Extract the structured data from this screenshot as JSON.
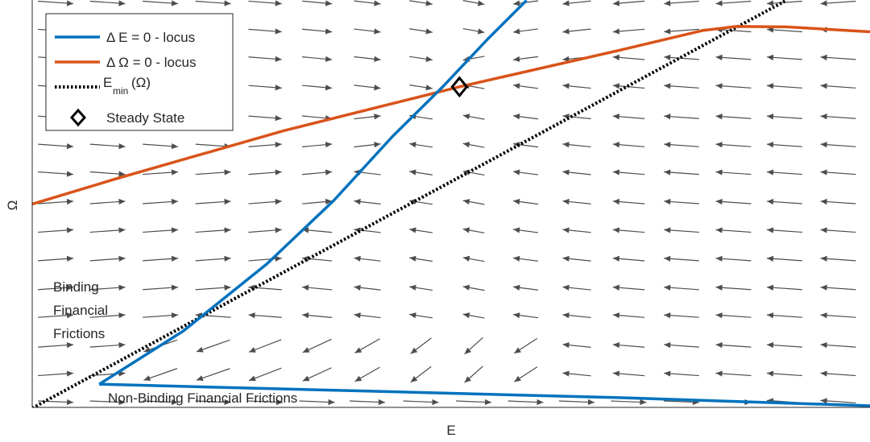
{
  "chart_data": {
    "type": "phase-diagram",
    "xlabel": "E",
    "ylabel": "Ω",
    "xlim": [
      0,
      1
    ],
    "ylim": [
      0,
      1
    ],
    "grid": false,
    "ticks": false,
    "legend_placement": "top-left",
    "legend": [
      {
        "key": "dE",
        "prefix": "Δ E = 0 - locus",
        "color": "#0072BD",
        "style": "solid"
      },
      {
        "key": "dOmega",
        "prefix": "Δ Ω = 0 - locus",
        "color": "#D95319",
        "style": "solid"
      },
      {
        "key": "emin",
        "main": "E",
        "sub": "min",
        "suffix": "(Ω)",
        "color": "#000000",
        "style": "dotted"
      },
      {
        "key": "ss",
        "prefix": "Steady State",
        "color": "#000000",
        "style": "diamond"
      }
    ],
    "annotations": {
      "binding": [
        "Binding",
        "Financial",
        "Frictions"
      ],
      "nonbinding": "Non-Binding Financial Frictions"
    },
    "series": {
      "dE_locus": [
        [
          0.08,
          0.057
        ],
        [
          0.18,
          0.187
        ],
        [
          0.28,
          0.352
        ],
        [
          0.36,
          0.508
        ],
        [
          0.43,
          0.665
        ],
        [
          0.49,
          0.787
        ],
        [
          0.545,
          0.907
        ],
        [
          0.59,
          0.999
        ]
      ],
      "nonbinding_boundary": [
        [
          0.08,
          0.057
        ],
        [
          0.4,
          0.04
        ],
        [
          0.7,
          0.024
        ],
        [
          1.0,
          0.004
        ]
      ],
      "dOmega_locus": [
        [
          0.0,
          0.499
        ],
        [
          0.1,
          0.561
        ],
        [
          0.3,
          0.679
        ],
        [
          0.51,
          0.787
        ],
        [
          0.7,
          0.876
        ],
        [
          0.8,
          0.925
        ],
        [
          0.84,
          0.935
        ],
        [
          0.9,
          0.934
        ],
        [
          1.0,
          0.922
        ]
      ],
      "emin_line": [
        [
          0.0,
          -0.002
        ],
        [
          0.9,
          0.999
        ]
      ],
      "steady_state": {
        "E": 0.51,
        "Omega": 0.787
      },
      "flow_field": {
        "rows": [
          0.014,
          0.081,
          0.151,
          0.224,
          0.292,
          0.363,
          0.433,
          0.503,
          0.575,
          0.643,
          0.712,
          0.787,
          0.857,
          0.925,
          0.994
        ],
        "cols": [
          0.028,
          0.09,
          0.153,
          0.216,
          0.278,
          0.34,
          0.4,
          0.464,
          0.527,
          0.589,
          0.65,
          0.712,
          0.775,
          0.837,
          0.898,
          0.962
        ]
      }
    }
  }
}
